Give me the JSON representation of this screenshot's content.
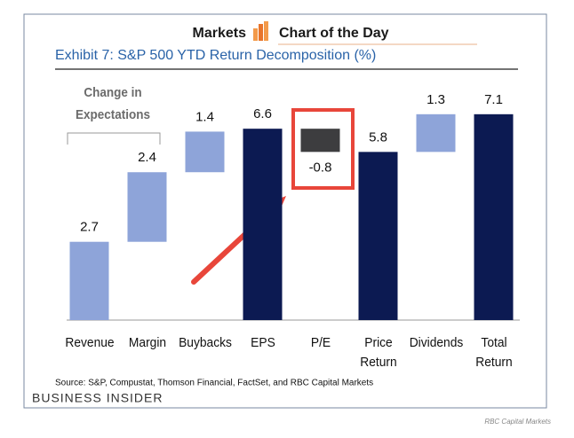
{
  "header": {
    "brand": "Markets",
    "title": "Chart of the Day"
  },
  "chart_data": {
    "type": "waterfall",
    "title": "Exhibit 7: S&P 500 YTD Return Decomposition (%)",
    "categories": [
      "Revenue",
      "Margin",
      "Buybacks",
      "EPS",
      "P/E",
      "Price Return",
      "Dividends",
      "Total Return"
    ],
    "values": [
      2.7,
      2.4,
      1.4,
      6.6,
      -0.8,
      5.8,
      1.3,
      7.1
    ],
    "measure": [
      "relative",
      "relative",
      "relative",
      "total",
      "relative",
      "total",
      "relative",
      "total"
    ],
    "colors": {
      "increase": "#8ea4d9",
      "decrease": "#3d3d3f",
      "total": "#0c1a52"
    },
    "annotation": "Change in Expectations",
    "source": "Source: S&P, Compustat, Thomson Financial, FactSet, and RBC Capital Markets"
  },
  "footer": {
    "publisher": "BUSINESS INSIDER",
    "credit": "RBC Capital Markets"
  }
}
